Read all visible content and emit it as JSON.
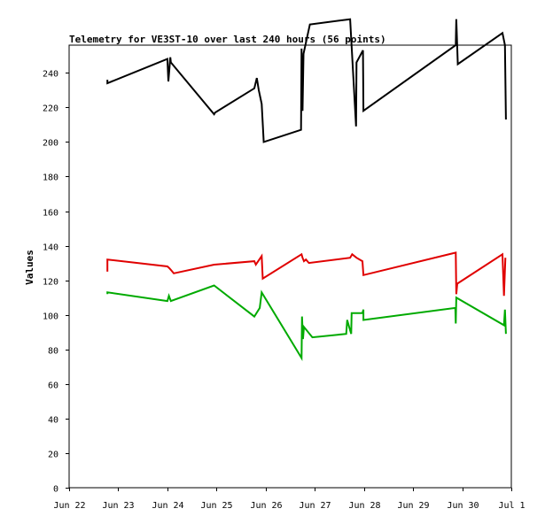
{
  "chart_data": {
    "type": "line",
    "title": "Telemetry for VE3ST-10 over last 240 hours (56 points)",
    "xlabel": "",
    "ylabel": "Values",
    "xlim": [
      0,
      9
    ],
    "ylim": [
      0,
      256
    ],
    "grid": false,
    "legend": "none",
    "x_tick_labels": [
      "Jun 22",
      "Jun 23",
      "Jun 24",
      "Jun 25",
      "Jun 26",
      "Jun 27",
      "Jun 28",
      "Jun 29",
      "Jun 30",
      "Jul 1"
    ],
    "y_ticks": [
      0,
      20,
      40,
      60,
      80,
      100,
      120,
      140,
      160,
      180,
      200,
      220,
      240
    ],
    "x_note": "x values are days since Jun 22 00:00",
    "series": [
      {
        "color": "#000000",
        "points": [
          [
            0.78,
            236
          ],
          [
            0.78,
            234
          ],
          [
            2.0,
            248
          ],
          [
            2.02,
            235
          ],
          [
            2.06,
            249
          ],
          [
            2.07,
            246
          ],
          [
            2.95,
            216
          ],
          [
            2.97,
            217
          ],
          [
            3.77,
            231
          ],
          [
            3.82,
            237
          ],
          [
            3.86,
            230
          ],
          [
            3.92,
            222
          ],
          [
            3.96,
            200
          ],
          [
            4.72,
            207
          ],
          [
            4.73,
            254
          ],
          [
            4.75,
            218
          ],
          [
            4.77,
            251
          ],
          [
            4.9,
            268
          ],
          [
            5.72,
            271
          ],
          [
            5.84,
            209
          ],
          [
            5.85,
            246
          ],
          [
            5.98,
            253
          ],
          [
            5.99,
            218
          ],
          [
            7.87,
            256
          ],
          [
            7.88,
            271
          ],
          [
            7.91,
            245
          ],
          [
            8.82,
            263
          ],
          [
            8.87,
            256
          ],
          [
            8.89,
            213
          ]
        ]
      },
      {
        "color": "#e00000",
        "points": [
          [
            0.78,
            125
          ],
          [
            0.78,
            132
          ],
          [
            2.0,
            128
          ],
          [
            2.04,
            127
          ],
          [
            2.07,
            126
          ],
          [
            2.13,
            124
          ],
          [
            2.95,
            129
          ],
          [
            3.77,
            131
          ],
          [
            3.8,
            129
          ],
          [
            3.92,
            134
          ],
          [
            3.94,
            121
          ],
          [
            4.73,
            135
          ],
          [
            4.75,
            133
          ],
          [
            4.78,
            131
          ],
          [
            4.82,
            132
          ],
          [
            4.88,
            130
          ],
          [
            5.72,
            133
          ],
          [
            5.76,
            135
          ],
          [
            5.85,
            133
          ],
          [
            5.97,
            131
          ],
          [
            5.99,
            123
          ],
          [
            7.87,
            136
          ],
          [
            7.88,
            112
          ],
          [
            7.9,
            118
          ],
          [
            8.82,
            135
          ],
          [
            8.85,
            111
          ],
          [
            8.88,
            133
          ]
        ]
      },
      {
        "color": "#00aa00",
        "points": [
          [
            0.78,
            112
          ],
          [
            0.78,
            113
          ],
          [
            2.0,
            108
          ],
          [
            2.03,
            111
          ],
          [
            2.07,
            108
          ],
          [
            2.95,
            117
          ],
          [
            3.77,
            99
          ],
          [
            3.88,
            104
          ],
          [
            3.92,
            113
          ],
          [
            4.73,
            75
          ],
          [
            4.74,
            99
          ],
          [
            4.76,
            86
          ],
          [
            4.78,
            93
          ],
          [
            4.95,
            87
          ],
          [
            5.64,
            89
          ],
          [
            5.66,
            97
          ],
          [
            5.7,
            93
          ],
          [
            5.74,
            89
          ],
          [
            5.75,
            101
          ],
          [
            5.97,
            101
          ],
          [
            5.99,
            103
          ],
          [
            5.99,
            97
          ],
          [
            7.86,
            104
          ],
          [
            7.87,
            95
          ],
          [
            7.88,
            110
          ],
          [
            8.85,
            94
          ],
          [
            8.87,
            103
          ],
          [
            8.89,
            89
          ]
        ]
      }
    ]
  }
}
